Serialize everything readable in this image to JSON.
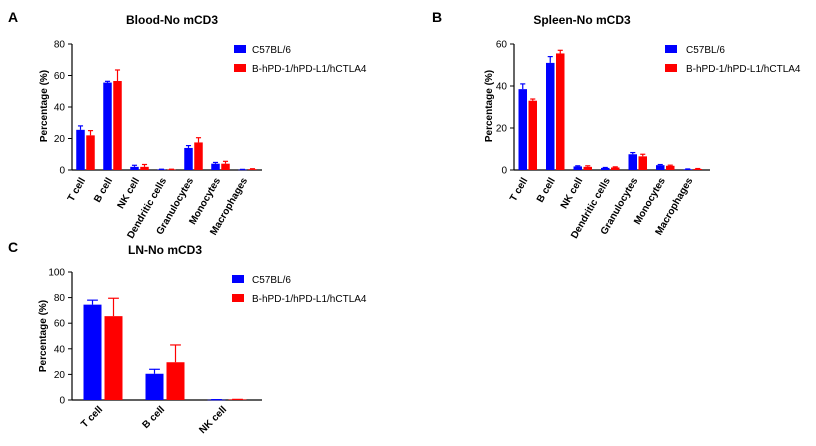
{
  "panels": [
    "A",
    "B",
    "C"
  ],
  "chart_data": [
    {
      "panel": "A",
      "type": "bar",
      "title": "Blood-No mCD3",
      "xlabel": "",
      "ylabel": "Percentage (%)",
      "ylim": [
        0,
        80
      ],
      "yticks": [
        0,
        20,
        40,
        60,
        80
      ],
      "categories": [
        "T cell",
        "B cell",
        "NK cell",
        "Dendritic cells",
        "Granulocytes",
        "Monocytes",
        "Macrophages"
      ],
      "series": [
        {
          "name": "C57BL/6",
          "color": "#0000ff",
          "values": [
            25.5,
            55.5,
            2.0,
            0.3,
            14.0,
            4.0,
            0.2
          ],
          "errors": [
            2.5,
            0.8,
            1.0,
            0.2,
            1.5,
            0.8,
            0.2
          ]
        },
        {
          "name": "B-hPD-1/hPD-L1/hCTLA4",
          "color": "#ff0000",
          "values": [
            22.0,
            56.5,
            2.0,
            0.3,
            17.5,
            4.0,
            0.5
          ],
          "errors": [
            3.0,
            7.0,
            1.5,
            0.2,
            3.0,
            1.5,
            0.3
          ]
        }
      ],
      "legend_position": "top-right",
      "grid": false
    },
    {
      "panel": "B",
      "type": "bar",
      "title": "Spleen-No mCD3",
      "xlabel": "",
      "ylabel": "Percentage (%)",
      "ylim": [
        0,
        60
      ],
      "yticks": [
        0,
        20,
        40,
        60
      ],
      "categories": [
        "T cell",
        "B cell",
        "NK cell",
        "Dendritic cells",
        "Granulocytes",
        "Monocytes",
        "Macrophages"
      ],
      "series": [
        {
          "name": "C57BL/6",
          "color": "#0000ff",
          "values": [
            38.5,
            51.0,
            1.7,
            1.0,
            7.5,
            2.3,
            0.3
          ],
          "errors": [
            2.5,
            3.0,
            0.3,
            0.2,
            0.8,
            0.3,
            0.2
          ]
        },
        {
          "name": "B-hPD-1/hPD-L1/hCTLA4",
          "color": "#ff0000",
          "values": [
            33.0,
            55.5,
            1.5,
            1.2,
            6.5,
            2.0,
            0.5
          ],
          "errors": [
            0.8,
            1.5,
            0.5,
            0.3,
            1.0,
            0.3,
            0.2
          ]
        }
      ],
      "legend_position": "top-right",
      "grid": false
    },
    {
      "panel": "C",
      "type": "bar",
      "title": "LN-No mCD3",
      "xlabel": "",
      "ylabel": "Percentage (%)",
      "ylim": [
        0,
        100
      ],
      "yticks": [
        0,
        20,
        40,
        60,
        80,
        100
      ],
      "categories": [
        "T cell",
        "B cell",
        "NK cell"
      ],
      "series": [
        {
          "name": "C57BL/6",
          "color": "#0000ff",
          "values": [
            74.5,
            20.5,
            0.2
          ],
          "errors": [
            3.5,
            3.5,
            0.1
          ]
        },
        {
          "name": "B-hPD-1/hPD-L1/hCTLA4",
          "color": "#ff0000",
          "values": [
            65.5,
            29.5,
            0.4
          ],
          "errors": [
            14.0,
            13.5,
            0.1
          ]
        }
      ],
      "legend_position": "top-right",
      "grid": false
    }
  ]
}
